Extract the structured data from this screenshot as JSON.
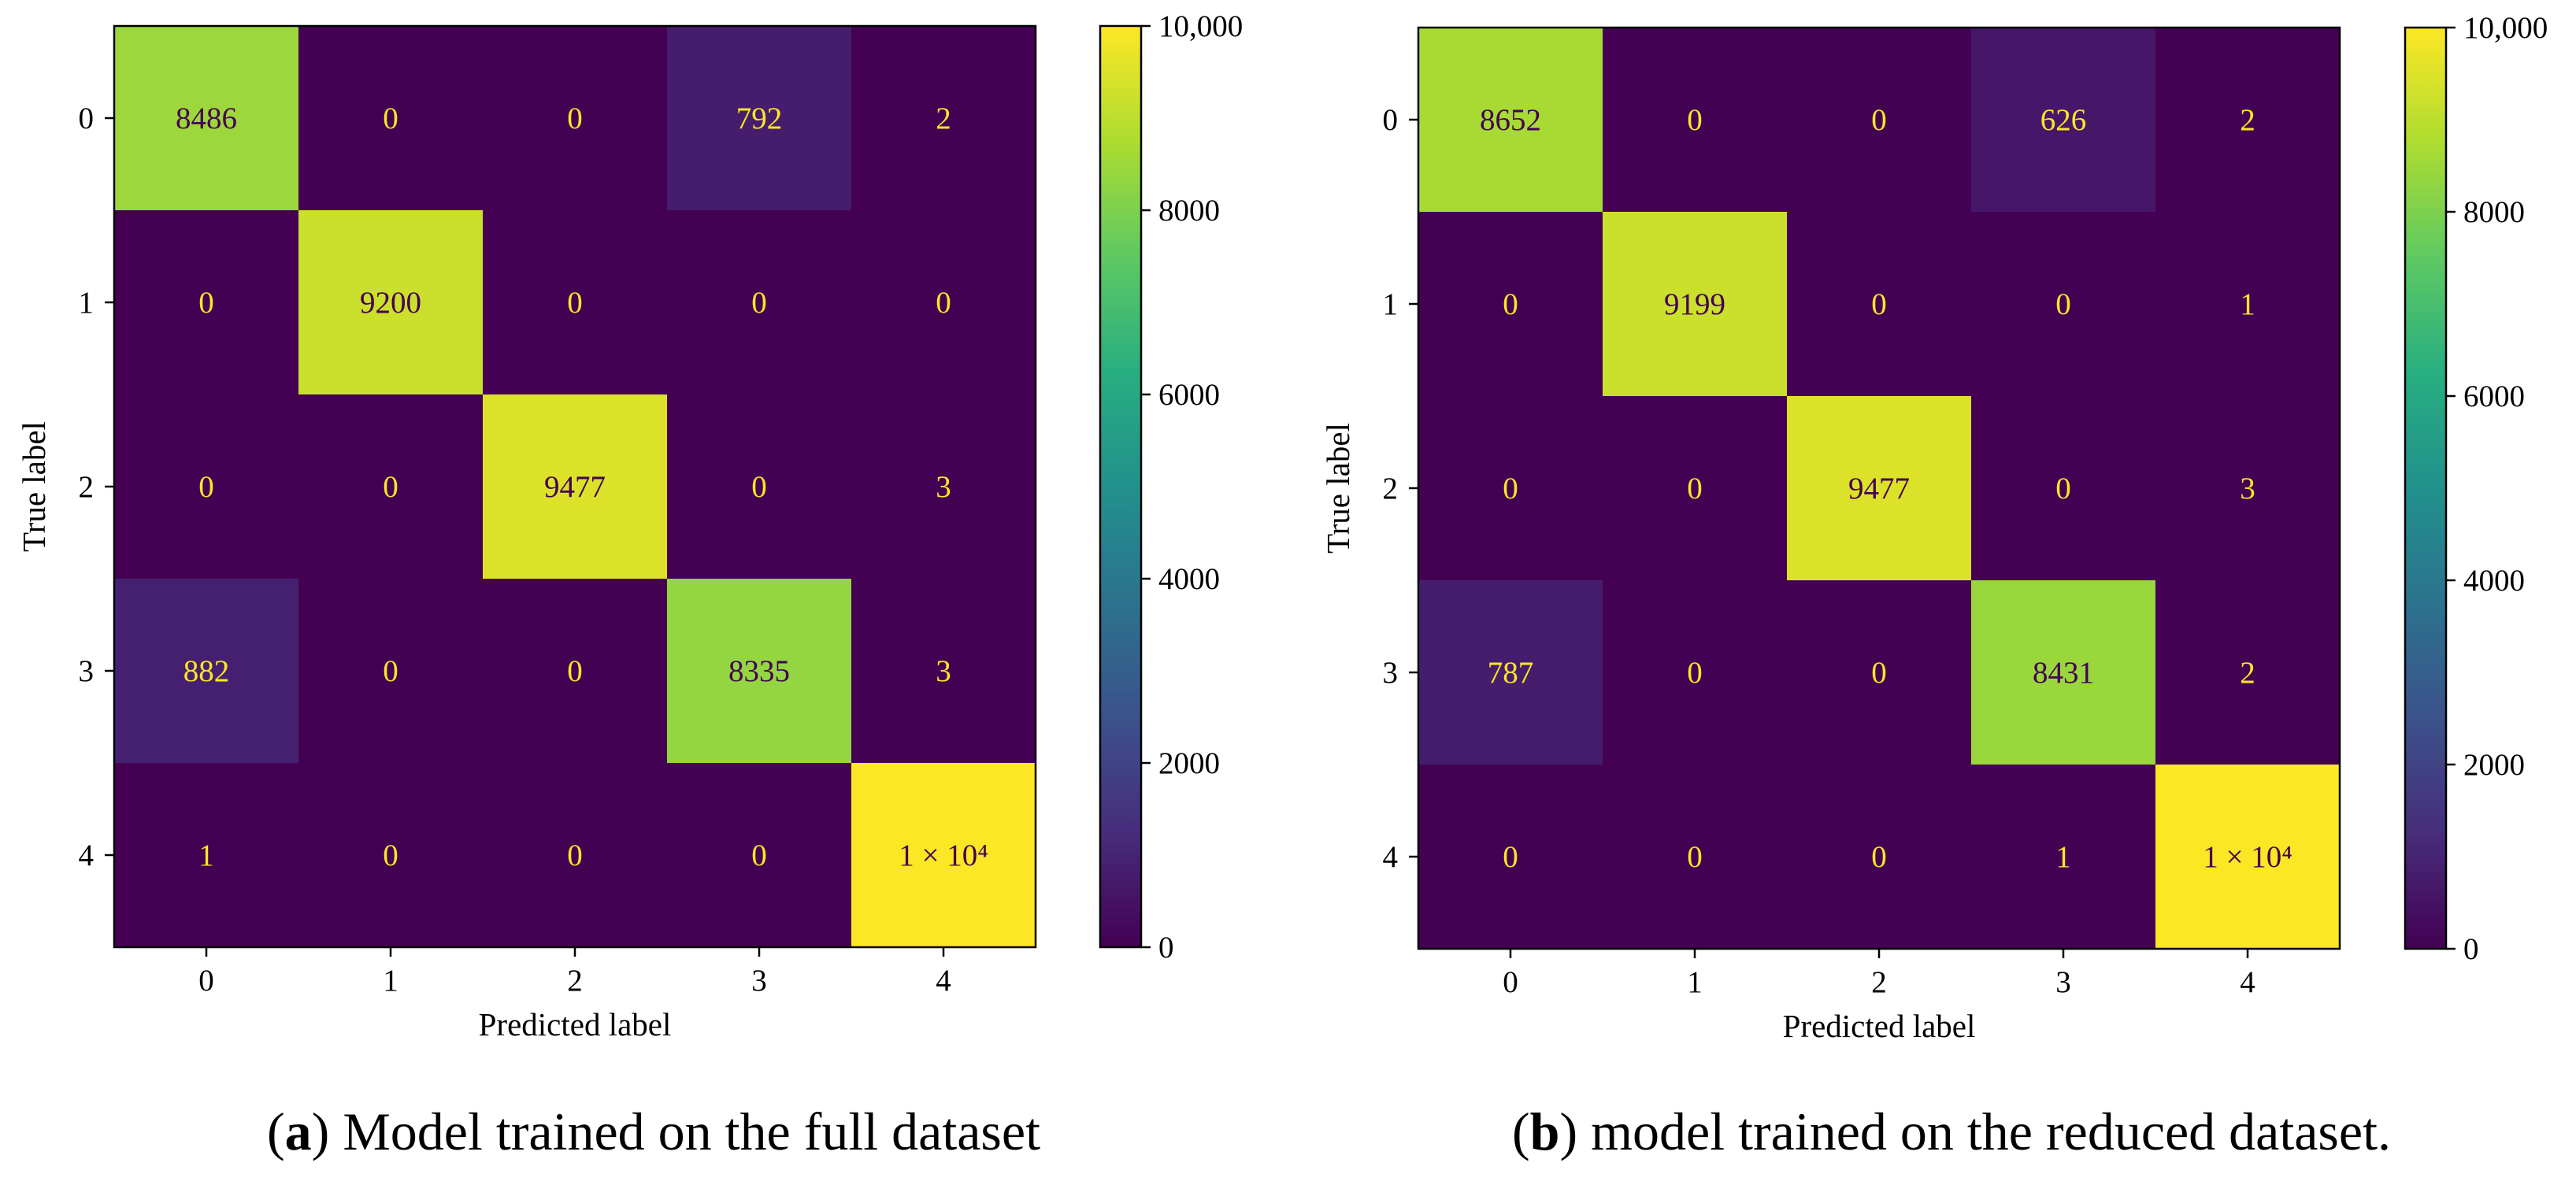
{
  "chart_data": [
    {
      "type": "heatmap",
      "panel_letter": "a",
      "caption_text": "Model trained on the full dataset",
      "xlabel": "Predicted label",
      "ylabel": "True label",
      "x_tick_labels": [
        "0",
        "1",
        "2",
        "3",
        "4"
      ],
      "y_tick_labels": [
        "0",
        "1",
        "2",
        "3",
        "4"
      ],
      "matrix": [
        [
          8486,
          0,
          0,
          792,
          2
        ],
        [
          0,
          9200,
          0,
          0,
          0
        ],
        [
          0,
          0,
          9477,
          0,
          3
        ],
        [
          882,
          0,
          0,
          8335,
          3
        ],
        [
          1,
          0,
          0,
          0,
          10000
        ]
      ],
      "cell_labels": [
        [
          "8486",
          "0",
          "0",
          "792",
          "2"
        ],
        [
          "0",
          "9200",
          "0",
          "0",
          "0"
        ],
        [
          "0",
          "0",
          "9477",
          "0",
          "3"
        ],
        [
          "882",
          "0",
          "0",
          "8335",
          "3"
        ],
        [
          "1",
          "0",
          "0",
          "0",
          "1 × 10⁴"
        ]
      ],
      "colorbar": {
        "colormap": "viridis",
        "range": [
          0,
          10000
        ],
        "ticks": [
          0,
          2000,
          4000,
          6000,
          8000,
          10000
        ],
        "tick_labels": [
          "0",
          "2000",
          "4000",
          "6000",
          "8000",
          "10,000"
        ]
      }
    },
    {
      "type": "heatmap",
      "panel_letter": "b",
      "caption_text": "model trained on the reduced dataset.",
      "xlabel": "Predicted label",
      "ylabel": "True label",
      "x_tick_labels": [
        "0",
        "1",
        "2",
        "3",
        "4"
      ],
      "y_tick_labels": [
        "0",
        "1",
        "2",
        "3",
        "4"
      ],
      "matrix": [
        [
          8652,
          0,
          0,
          626,
          2
        ],
        [
          0,
          9199,
          0,
          0,
          1
        ],
        [
          0,
          0,
          9477,
          0,
          3
        ],
        [
          787,
          0,
          0,
          8431,
          2
        ],
        [
          0,
          0,
          0,
          1,
          10000
        ]
      ],
      "cell_labels": [
        [
          "8652",
          "0",
          "0",
          "626",
          "2"
        ],
        [
          "0",
          "9199",
          "0",
          "0",
          "1"
        ],
        [
          "0",
          "0",
          "9477",
          "0",
          "3"
        ],
        [
          "787",
          "0",
          "0",
          "8431",
          "2"
        ],
        [
          "0",
          "0",
          "0",
          "1",
          "1 × 10⁴"
        ]
      ],
      "colorbar": {
        "colormap": "viridis",
        "range": [
          0,
          10000
        ],
        "ticks": [
          0,
          2000,
          4000,
          6000,
          8000,
          10000
        ],
        "tick_labels": [
          "0",
          "2000",
          "4000",
          "6000",
          "8000",
          "10,000"
        ]
      }
    }
  ]
}
